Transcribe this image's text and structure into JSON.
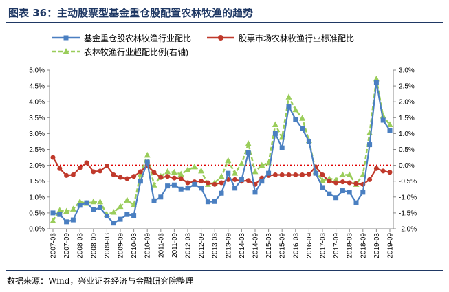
{
  "title": "图表 36：主动股票型基金重仓股配置农林牧渔的趋势",
  "source": "数据来源：Wind，兴业证券经济与金融研究院整理",
  "colors": {
    "fund": "#4a7fc1",
    "benchmark": "#c0392b",
    "excess": "#9acd5a",
    "zeroline": "#e00000",
    "title": "#1f3864"
  },
  "chart_data": {
    "type": "line",
    "legend_position": "top",
    "x": [
      "2007-03",
      "2007-06",
      "2007-09",
      "2007-12",
      "2008-03",
      "2008-06",
      "2008-09",
      "2008-12",
      "2009-03",
      "2009-06",
      "2009-09",
      "2009-12",
      "2010-03",
      "2010-06",
      "2010-09",
      "2010-12",
      "2011-03",
      "2011-06",
      "2011-09",
      "2011-12",
      "2012-03",
      "2012-06",
      "2012-09",
      "2012-12",
      "2013-03",
      "2013-06",
      "2013-09",
      "2013-12",
      "2014-03",
      "2014-06",
      "2014-09",
      "2014-12",
      "2015-03",
      "2015-06",
      "2015-09",
      "2015-12",
      "2016-03",
      "2016-06",
      "2016-09",
      "2016-12",
      "2017-03",
      "2017-06",
      "2017-09",
      "2017-12",
      "2018-03",
      "2018-06",
      "2018-09",
      "2018-12",
      "2019-03",
      "2019-06",
      "2019-09"
    ],
    "tick_labels": [
      "2007-03",
      "2007-09",
      "2008-03",
      "2008-09",
      "2009-03",
      "2009-09",
      "2010-03",
      "2010-09",
      "2011-03",
      "2011-09",
      "2012-03",
      "2012-09",
      "2013-03",
      "2013-09",
      "2014-03",
      "2014-09",
      "2015-03",
      "2015-09",
      "2016-03",
      "2016-09",
      "2017-03",
      "2017-09",
      "2018-03",
      "2018-09",
      "2019-03",
      "2019-09"
    ],
    "y_left": {
      "min": 0,
      "max": 5,
      "step": 0.5,
      "ticks": [
        "0.0%",
        "0.5%",
        "1.0%",
        "1.5%",
        "2.0%",
        "2.5%",
        "3.0%",
        "3.5%",
        "4.0%",
        "4.5%",
        "5.0%"
      ]
    },
    "y_right": {
      "min": -2,
      "max": 3,
      "step": 0.5,
      "ticks": [
        "-2.0%",
        "-1.5%",
        "-1.0%",
        "-0.5%",
        "0.0%",
        "0.5%",
        "1.0%",
        "1.5%",
        "2.0%",
        "2.5%",
        "3.0%"
      ]
    },
    "reference_line": {
      "axis": "right",
      "value": 0
    },
    "series": [
      {
        "name": "基金重仓股农林牧渔行业配比",
        "axis": "left",
        "marker": "square",
        "values": [
          0.5,
          0.45,
          0.22,
          0.28,
          0.74,
          0.82,
          0.6,
          0.66,
          0.4,
          0.18,
          0.3,
          0.45,
          0.42,
          1.5,
          2.1,
          0.88,
          1.0,
          1.35,
          1.38,
          1.25,
          1.28,
          1.4,
          1.28,
          0.85,
          0.86,
          1.12,
          1.75,
          1.28,
          1.55,
          2.4,
          1.15,
          1.5,
          1.75,
          3.0,
          2.55,
          3.85,
          3.45,
          3.15,
          2.75,
          1.75,
          1.3,
          1.1,
          0.98,
          1.2,
          1.15,
          0.82,
          1.15,
          2.65,
          4.62,
          3.42,
          3.1
        ]
      },
      {
        "name": "股票市场农林牧渔行业标准配比",
        "axis": "left",
        "marker": "circle",
        "values": [
          2.25,
          1.9,
          1.68,
          1.7,
          1.92,
          2.08,
          1.8,
          1.82,
          1.98,
          1.7,
          1.62,
          1.58,
          1.65,
          1.8,
          2.0,
          1.78,
          1.62,
          1.65,
          1.6,
          1.58,
          1.45,
          1.48,
          1.5,
          1.45,
          1.4,
          1.45,
          1.55,
          1.55,
          1.5,
          1.52,
          1.4,
          1.6,
          1.68,
          1.7,
          1.7,
          1.7,
          1.7,
          1.7,
          1.72,
          1.95,
          1.7,
          1.5,
          1.45,
          1.48,
          1.45,
          1.42,
          1.4,
          1.55,
          1.9,
          1.82,
          1.78
        ]
      },
      {
        "name": "农林牧渔行业超配比例(右轴)",
        "axis": "right",
        "marker": "triangle",
        "dashed": true,
        "values": [
          -1.75,
          -1.42,
          -1.45,
          -1.38,
          -1.15,
          -1.2,
          -1.15,
          -1.15,
          -1.55,
          -1.48,
          -1.3,
          -1.1,
          -1.25,
          -0.28,
          0.32,
          -0.62,
          -0.35,
          -0.2,
          -0.22,
          -0.28,
          -0.15,
          -0.05,
          -0.18,
          -0.6,
          -0.55,
          -0.35,
          0.15,
          -0.25,
          0.05,
          0.68,
          -0.2,
          0.0,
          0.08,
          1.28,
          0.88,
          2.15,
          1.75,
          1.48,
          0.78,
          -0.2,
          -0.48,
          -0.42,
          -0.45,
          -0.3,
          -0.3,
          -0.6,
          -0.3,
          1.02,
          2.72,
          1.55,
          1.28
        ]
      }
    ]
  }
}
